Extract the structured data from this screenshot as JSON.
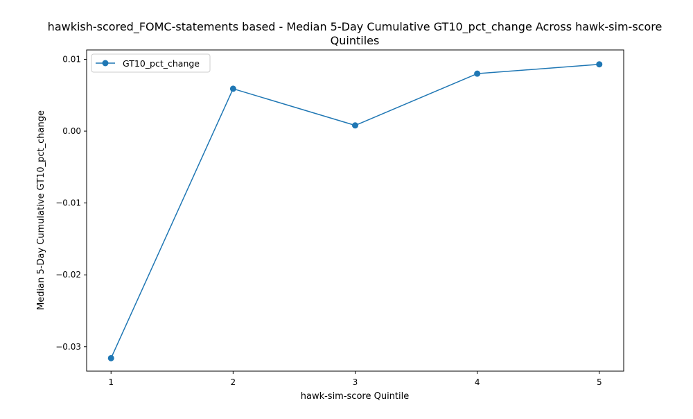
{
  "chart_data": {
    "type": "line",
    "title_line1": "hawkish-scored_FOMC-statements based - Median 5-Day Cumulative GT10_pct_change Across hawk-sim-score",
    "title_line2": "Quintiles",
    "xlabel": "hawk-sim-score Quintile",
    "ylabel": "Median 5-Day Cumulative GT10_pct_change",
    "x": [
      1,
      2,
      3,
      4,
      5
    ],
    "x_tick_labels": [
      "1",
      "2",
      "3",
      "4",
      "5"
    ],
    "y_ticks": [
      0.01,
      0.0,
      -0.01,
      -0.02,
      -0.03
    ],
    "y_tick_labels": [
      "0.01",
      "0.00",
      "−0.01",
      "−0.02",
      "−0.03"
    ],
    "ylim": [
      -0.0334,
      0.0113
    ],
    "xlim": [
      0.8,
      5.2
    ],
    "series": [
      {
        "name": "GT10_pct_change",
        "color": "#1f77b4",
        "marker": "circle",
        "values": [
          -0.0316,
          0.0059,
          0.0008,
          0.008,
          0.0093
        ]
      }
    ],
    "legend_position": "upper-left",
    "grid": false
  }
}
